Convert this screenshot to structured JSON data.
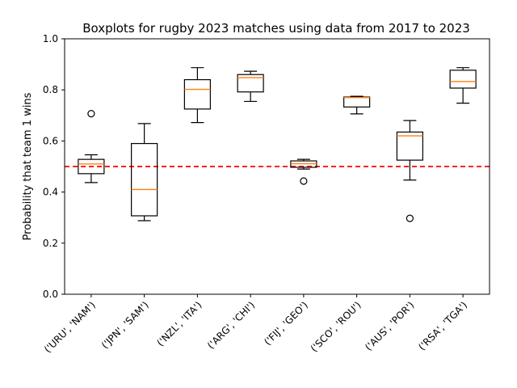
{
  "chart_data": {
    "type": "box",
    "title": "Boxplots for rugby 2023 matches using data from 2017 to 2023",
    "xlabel": "",
    "ylabel": "Probability that team 1 wins",
    "ylim": [
      0,
      1
    ],
    "yticks": [
      "0.0",
      "0.2",
      "0.4",
      "0.6",
      "0.8",
      "1.0"
    ],
    "reference_line": {
      "y": 0.5,
      "color": "#ff0000",
      "style": "dashed"
    },
    "box_color": "#000000",
    "median_color": "#ff7f0e",
    "categories": [
      "('URU', 'NAM')",
      "('JPN', 'SAM')",
      "('NZL', 'ITA')",
      "('ARG', 'CHI')",
      "('FIJ', 'GEO')",
      "('SCO', 'ROU')",
      "('AUS', 'POR')",
      "('RSA', 'TGA')"
    ],
    "boxes": [
      {
        "whisker_low": 0.437,
        "q1": 0.472,
        "median": 0.51,
        "q3": 0.528,
        "whisker_high": 0.546,
        "fliers": [
          0.707
        ]
      },
      {
        "whisker_low": 0.288,
        "q1": 0.307,
        "median": 0.41,
        "q3": 0.59,
        "whisker_high": 0.668,
        "fliers": []
      },
      {
        "whisker_low": 0.672,
        "q1": 0.725,
        "median": 0.802,
        "q3": 0.84,
        "whisker_high": 0.887,
        "fliers": []
      },
      {
        "whisker_low": 0.755,
        "q1": 0.792,
        "median": 0.848,
        "q3": 0.86,
        "whisker_high": 0.873,
        "fliers": []
      },
      {
        "whisker_low": 0.49,
        "q1": 0.497,
        "median": 0.511,
        "q3": 0.522,
        "whisker_high": 0.528,
        "fliers": [
          0.443
        ]
      },
      {
        "whisker_low": 0.706,
        "q1": 0.733,
        "median": 0.77,
        "q3": 0.772,
        "whisker_high": 0.775,
        "fliers": []
      },
      {
        "whisker_low": 0.447,
        "q1": 0.525,
        "median": 0.62,
        "q3": 0.635,
        "whisker_high": 0.68,
        "fliers": [
          0.297
        ]
      },
      {
        "whisker_low": 0.748,
        "q1": 0.807,
        "median": 0.833,
        "q3": 0.877,
        "whisker_high": 0.887,
        "fliers": []
      }
    ]
  }
}
